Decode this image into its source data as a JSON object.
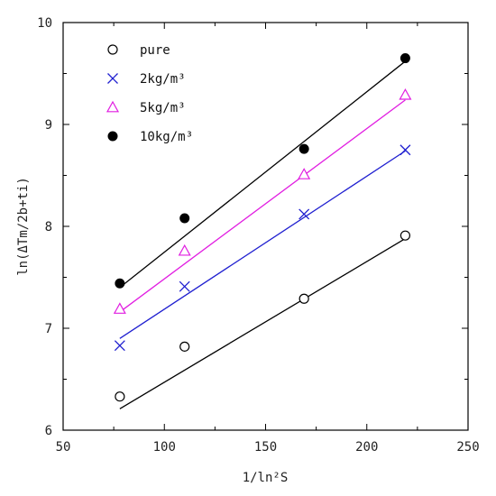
{
  "chart_data": {
    "type": "scatter",
    "xlabel": "1/ln²S",
    "ylabel": "ln(ΔTm/2b+ti)",
    "xlim": [
      50,
      250
    ],
    "ylim": [
      6,
      10
    ],
    "x_ticks": [
      "50",
      "100",
      "150",
      "200",
      "250"
    ],
    "y_ticks": [
      "6",
      "7",
      "8",
      "9",
      "10"
    ],
    "legend_position": "top-left",
    "grid": false,
    "series": [
      {
        "name": "pure",
        "marker": "open-circle",
        "color": "#000000",
        "fit_color": "#000000",
        "x": [
          78,
          110,
          169,
          219
        ],
        "y": [
          6.33,
          6.82,
          7.29,
          7.91
        ],
        "fit": [
          [
            78,
            6.21
          ],
          [
            219,
            7.88
          ]
        ]
      },
      {
        "name": "2kg/m³",
        "marker": "x",
        "color": "#1f1fd0",
        "fit_color": "#1f1fd0",
        "x": [
          78,
          110,
          169,
          219
        ],
        "y": [
          6.83,
          7.41,
          8.12,
          8.75
        ],
        "fit": [
          [
            78,
            6.9
          ],
          [
            219,
            8.74
          ]
        ]
      },
      {
        "name": "5kg/m³",
        "marker": "open-triangle",
        "color": "#e11ee1",
        "fit_color": "#e11ee1",
        "x": [
          78,
          110,
          169,
          219
        ],
        "y": [
          7.19,
          7.76,
          8.51,
          9.29
        ],
        "fit": [
          [
            78,
            7.16
          ],
          [
            219,
            9.24
          ]
        ]
      },
      {
        "name": "10kg/m³",
        "marker": "filled-circle",
        "color": "#000000",
        "fit_color": "#000000",
        "x": [
          78,
          110,
          169,
          219
        ],
        "y": [
          7.44,
          8.08,
          8.76,
          9.65
        ],
        "fit": [
          [
            78,
            7.4
          ],
          [
            219,
            9.62
          ]
        ]
      }
    ]
  }
}
